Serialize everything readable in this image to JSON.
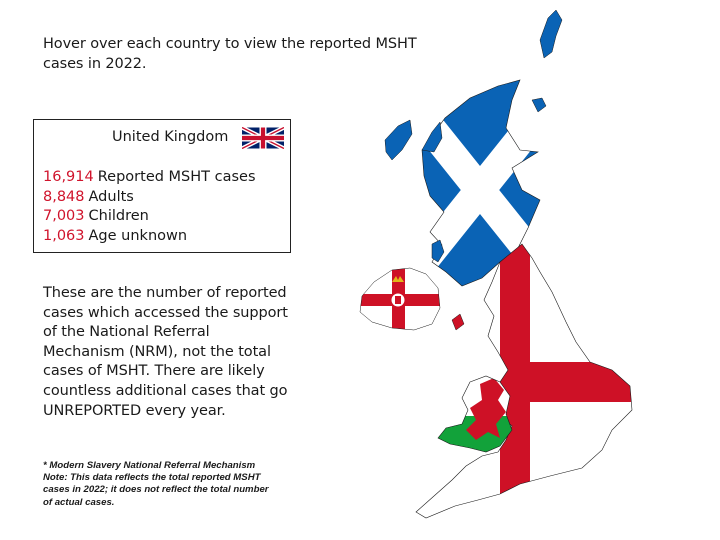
{
  "intro_text": "Hover over each country to view the reported MSHT cases in 2022.",
  "info_box": {
    "title": "United Kingdom",
    "flag_icon": "union-jack-flag",
    "stats": [
      {
        "value": "16,914",
        "label": "Reported MSHT cases"
      },
      {
        "value": "8,848",
        "label": "Adults"
      },
      {
        "value": "7,003",
        "label": "Children"
      },
      {
        "value": "1,063",
        "label": "Age unknown"
      }
    ]
  },
  "description": "These are the number of reported cases which accessed the support of the National Referral Mechanism (NRM), not the total cases of MSHT. There are likely countless additional cases that go UNREPORTED every year.",
  "footnote": {
    "line1": "* Modern Slavery National Referral Mechanism",
    "line2": "Note: This data reflects the total reported MSHT",
    "line3": "cases in 2022; it does not reflect the total number",
    "line4": "of actual cases."
  },
  "colors": {
    "accent_red": "#d0142c",
    "scotland_blue": "#0a63b5",
    "wales_green": "#12a23a",
    "england_red": "#ce1126"
  },
  "map_countries": [
    "Scotland",
    "Northern Ireland",
    "England",
    "Wales"
  ]
}
